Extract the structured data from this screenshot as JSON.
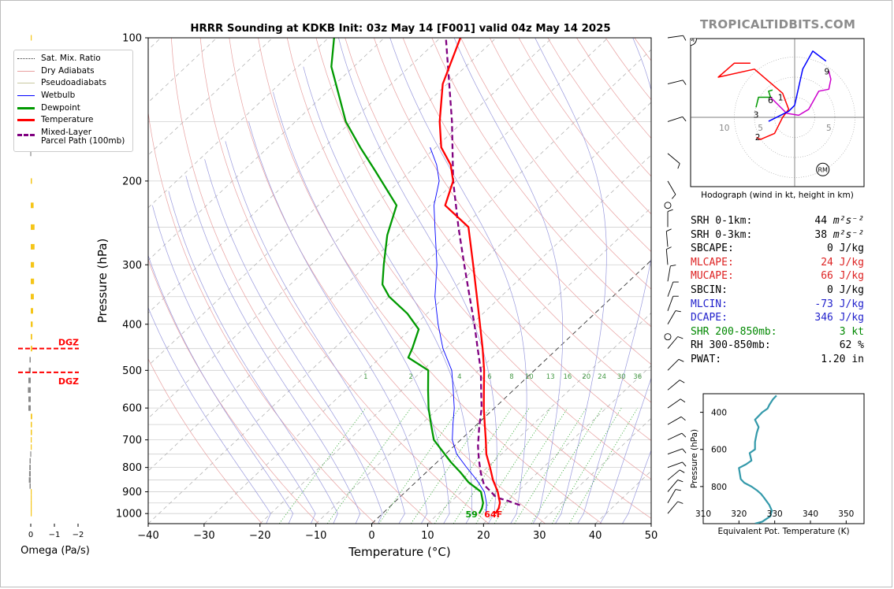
{
  "title": "HRRR Sounding at KDKB Init: 03z May 14 [F001] valid 04z May 14 2025",
  "brand": "TROPICALTIDBITS.COM",
  "colors": {
    "temperature": "#ff0000",
    "dewpoint": "#009900",
    "wetbulb": "#0000ff",
    "parcel": "#800080",
    "dry_adiabat": "#e8a0a0",
    "moist_adiabat": "#9999dd",
    "mixing_ratio": "#33aa33",
    "isotherm": "#555555",
    "theta_e": "#3399aa",
    "omega_up": "#f5c518",
    "omega_down": "#888888"
  },
  "legend": [
    {
      "label": "Sat. Mix. Ratio",
      "style": "mixing"
    },
    {
      "label": "Dry Adiabats",
      "style": "dry"
    },
    {
      "label": "Pseudoadiabats",
      "style": "pseudo"
    },
    {
      "label": "Wetbulb",
      "style": "wetbulb"
    },
    {
      "label": "Dewpoint",
      "style": "dewpoint"
    },
    {
      "label": "Temperature",
      "style": "temperature"
    },
    {
      "label": "Mixed-Layer\nParcel Path (100mb)",
      "style": "parcel"
    }
  ],
  "surface_labels": {
    "dewpoint": "59",
    "temperature": "64F"
  },
  "indices": [
    {
      "label": "SRH 0-1km:",
      "value": "44",
      "unit": "m²s⁻²",
      "color": "#000000"
    },
    {
      "label": "SRH 0-3km:",
      "value": "38",
      "unit": "m²s⁻²",
      "color": "#000000"
    },
    {
      "label": "SBCAPE:",
      "value": "0 J/kg",
      "unit": "",
      "color": "#000000"
    },
    {
      "label": "MLCAPE:",
      "value": "24 J/kg",
      "unit": "",
      "color": "#dd2222"
    },
    {
      "label": "MUCAPE:",
      "value": "66 J/kg",
      "unit": "",
      "color": "#dd2222"
    },
    {
      "label": "SBCIN:",
      "value": "0 J/kg",
      "unit": "",
      "color": "#000000"
    },
    {
      "label": "MLCIN:",
      "value": "-73 J/kg",
      "unit": "",
      "color": "#2222cc"
    },
    {
      "label": "DCAPE:",
      "value": "346 J/kg",
      "unit": "",
      "color": "#2222cc"
    },
    {
      "label": "SHR 200-850mb:",
      "value": "3 kt",
      "unit": "",
      "color": "#008800"
    },
    {
      "label": "RH 300-850mb:",
      "value": "62 %",
      "unit": "",
      "color": "#000000"
    },
    {
      "label": "PWAT:",
      "value": "1.20 in",
      "unit": "",
      "color": "#000000"
    }
  ],
  "chart_data": [
    {
      "type": "line",
      "name": "skew-t",
      "xlabel": "Temperature (°C)",
      "ylabel": "Pressure (hPa)",
      "xlim": [
        -40,
        50
      ],
      "ylim": [
        1050,
        100
      ],
      "y_scale": "log",
      "x_ticks": [
        -40,
        -30,
        -20,
        -10,
        0,
        10,
        20,
        30,
        40,
        50
      ],
      "y_ticks": [
        100,
        200,
        300,
        400,
        500,
        600,
        700,
        800,
        900,
        1000
      ],
      "grid": true,
      "mixing_ratio_labels": [
        "1",
        "2",
        "4",
        "6",
        "8",
        "10",
        "13",
        "16",
        "20",
        "24",
        "30",
        "36"
      ],
      "series": [
        {
          "name": "Temperature",
          "points": [
            [
              20.2,
              1000
            ],
            [
              19.8,
              975
            ],
            [
              19.0,
              950
            ],
            [
              16.5,
              900
            ],
            [
              13.4,
              850
            ],
            [
              10.5,
              800
            ],
            [
              7.3,
              750
            ],
            [
              4.5,
              700
            ],
            [
              1.4,
              650
            ],
            [
              -1.9,
              600
            ],
            [
              -5.3,
              550
            ],
            [
              -9.0,
              500
            ],
            [
              -13.4,
              450
            ],
            [
              -18.5,
              400
            ],
            [
              -24.3,
              350
            ],
            [
              -31.0,
              300
            ],
            [
              -39.0,
              250
            ],
            [
              -47.3,
              225
            ],
            [
              -50.5,
              200
            ],
            [
              -54.0,
              185
            ],
            [
              -59.0,
              170
            ],
            [
              -64.2,
              150
            ],
            [
              -70.8,
              125
            ],
            [
              -76.4,
              100
            ]
          ]
        },
        {
          "name": "Dewpoint",
          "points": [
            [
              17.3,
              1000
            ],
            [
              16.8,
              975
            ],
            [
              16.0,
              950
            ],
            [
              13.5,
              900
            ],
            [
              9.5,
              860
            ],
            [
              6.2,
              820
            ],
            [
              2.5,
              780
            ],
            [
              -1.5,
              735
            ],
            [
              -4.8,
              700
            ],
            [
              -8.2,
              650
            ],
            [
              -11.8,
              600
            ],
            [
              -15.3,
              550
            ],
            [
              -19.0,
              500
            ],
            [
              -25.0,
              470
            ],
            [
              -26.0,
              450
            ],
            [
              -28.5,
              410
            ],
            [
              -33.5,
              380
            ],
            [
              -40.0,
              350
            ],
            [
              -43.5,
              330
            ],
            [
              -47.0,
              300
            ],
            [
              -52.0,
              260
            ],
            [
              -56.0,
              225
            ],
            [
              -66.5,
              190
            ],
            [
              -73.5,
              170
            ],
            [
              -81.0,
              150
            ],
            [
              -88.0,
              130
            ],
            [
              -94.0,
              115
            ],
            [
              -99.0,
              100
            ]
          ]
        },
        {
          "name": "Wetbulb",
          "points": [
            [
              18.5,
              1000
            ],
            [
              17.6,
              975
            ],
            [
              16.6,
              950
            ],
            [
              14.1,
              900
            ],
            [
              10.5,
              850
            ],
            [
              6.3,
              800
            ],
            [
              2.0,
              750
            ],
            [
              -1.5,
              700
            ],
            [
              -4.3,
              650
            ],
            [
              -7.2,
              600
            ],
            [
              -10.8,
              550
            ],
            [
              -14.8,
              500
            ],
            [
              -20.5,
              450
            ],
            [
              -26.0,
              400
            ],
            [
              -31.8,
              350
            ],
            [
              -37.5,
              300
            ],
            [
              -45.0,
              250
            ],
            [
              -49.3,
              225
            ],
            [
              -53.0,
              200
            ],
            [
              -56.5,
              185
            ],
            [
              -61.0,
              170
            ]
          ]
        },
        {
          "name": "Mixed-Layer Parcel Path (100mb)",
          "points": [
            [
              23.0,
              960
            ],
            [
              20.0,
              940
            ],
            [
              17.3,
              925
            ],
            [
              15.3,
              900
            ],
            [
              12.7,
              870
            ],
            [
              9.8,
              820
            ],
            [
              7.0,
              770
            ],
            [
              4.2,
              720
            ],
            [
              1.0,
              660
            ],
            [
              -2.3,
              600
            ],
            [
              -5.8,
              550
            ],
            [
              -9.6,
              500
            ],
            [
              -14.3,
              450
            ],
            [
              -19.5,
              400
            ],
            [
              -25.6,
              350
            ],
            [
              -32.6,
              300
            ],
            [
              -40.8,
              250
            ],
            [
              -50.5,
              200
            ],
            [
              -62.0,
              150
            ],
            [
              -75.0,
              110
            ],
            [
              -79.0,
              100
            ]
          ]
        }
      ]
    },
    {
      "type": "bar",
      "name": "omega",
      "xlabel": "Omega (Pa/s)",
      "x_ticks": [
        0,
        -1,
        -2
      ],
      "xlim": [
        0.3,
        -2.3
      ],
      "dgz_label": "DGZ",
      "dgz_levels": [
        450,
        505
      ],
      "bars": [
        [
          1000,
          -0.03
        ],
        [
          975,
          -0.04
        ],
        [
          950,
          -0.04
        ],
        [
          925,
          -0.03
        ],
        [
          900,
          -0.02
        ],
        [
          875,
          0.05
        ],
        [
          850,
          0.08
        ],
        [
          825,
          0.07
        ],
        [
          800,
          0.06
        ],
        [
          775,
          0.05
        ],
        [
          750,
          0.02
        ],
        [
          725,
          -0.03
        ],
        [
          700,
          -0.04
        ],
        [
          675,
          -0.05
        ],
        [
          650,
          -0.05
        ],
        [
          625,
          -0.06
        ],
        [
          600,
          0.1
        ],
        [
          575,
          0.1
        ],
        [
          550,
          0.12
        ],
        [
          525,
          0.1
        ],
        [
          500,
          0.08
        ],
        [
          475,
          0.05
        ],
        [
          450,
          -0.06
        ],
        [
          425,
          -0.06
        ],
        [
          400,
          -0.08
        ],
        [
          375,
          -0.1
        ],
        [
          350,
          -0.13
        ],
        [
          325,
          -0.14
        ],
        [
          300,
          -0.14
        ],
        [
          275,
          -0.16
        ],
        [
          250,
          -0.16
        ],
        [
          225,
          -0.12
        ],
        [
          200,
          -0.05
        ],
        [
          175,
          0.02
        ],
        [
          150,
          0.02
        ],
        [
          125,
          -0.02
        ],
        [
          100,
          -0.03
        ]
      ]
    },
    {
      "type": "line",
      "name": "hodograph",
      "caption": "Hodograph (wind in kt, height in km)",
      "ring_labels": [
        "10",
        "5",
        "5"
      ],
      "storm_motion_labels": [
        "LM",
        "RM"
      ],
      "height_labels": [
        [
          "1",
          -3.5,
          5.0
        ],
        [
          "2",
          -9.2,
          -4.9
        ],
        [
          "3",
          -9.6,
          0.7
        ],
        [
          "6",
          -6.0,
          4.3
        ],
        [
          "9",
          8.0,
          11.5
        ]
      ],
      "segments": [
        {
          "color": "#ff0000",
          "points": [
            [
              -9.5,
              -5.0
            ],
            [
              -8.5,
              -5.5
            ],
            [
              -5.0,
              -4.0
            ],
            [
              -3.0,
              0.0
            ],
            [
              -1.5,
              2.0
            ],
            [
              -3.0,
              6.0
            ],
            [
              -10.0,
              12.0
            ],
            [
              -19.0,
              10.0
            ],
            [
              -15.0,
              13.5
            ],
            [
              -11.0,
              13.5
            ]
          ]
        },
        {
          "color": "#009900",
          "points": [
            [
              -9.6,
              2.5
            ],
            [
              -9.0,
              5.0
            ],
            [
              -6.0,
              5.0
            ],
            [
              -6.5,
              6.5
            ],
            [
              -5.5,
              6.8
            ]
          ]
        },
        {
          "color": "#cc00cc",
          "points": [
            [
              -6.0,
              5.0
            ],
            [
              -2.0,
              1.0
            ],
            [
              1.0,
              0.5
            ],
            [
              3.5,
              2.0
            ],
            [
              6.0,
              6.5
            ],
            [
              8.5,
              7.0
            ],
            [
              9.0,
              9.5
            ],
            [
              8.5,
              11.5
            ]
          ]
        },
        {
          "color": "#0000ff",
          "points": [
            [
              -6.5,
              -1.0
            ],
            [
              -1.5,
              1.5
            ],
            [
              0.0,
              3.0
            ],
            [
              2.0,
              12.0
            ],
            [
              4.5,
              16.5
            ],
            [
              7.8,
              14.0
            ]
          ]
        }
      ]
    },
    {
      "type": "line",
      "name": "theta-e",
      "xlabel": "Equivalent Pot. Temperature (K)",
      "ylabel": "Pressure (hPa)",
      "xlim": [
        310,
        355
      ],
      "ylim": [
        1000,
        300
      ],
      "x_ticks": [
        310,
        320,
        330,
        340,
        350
      ],
      "y_ticks": [
        400,
        600,
        800
      ],
      "series": [
        {
          "name": "Theta-E",
          "points": [
            [
              324.5,
              1000
            ],
            [
              326.5,
              990
            ],
            [
              328.8,
              960
            ],
            [
              329.2,
              930
            ],
            [
              328.5,
              900
            ],
            [
              327.0,
              860
            ],
            [
              326.2,
              840
            ],
            [
              325.0,
              820
            ],
            [
              323.5,
              800
            ],
            [
              321.5,
              780
            ],
            [
              320.5,
              760
            ],
            [
              320.0,
              700
            ],
            [
              322.0,
              680
            ],
            [
              323.5,
              660
            ],
            [
              323.0,
              620
            ],
            [
              324.5,
              600
            ],
            [
              324.5,
              560
            ],
            [
              325.0,
              510
            ],
            [
              325.5,
              480
            ],
            [
              324.5,
              440
            ],
            [
              325.5,
              420
            ],
            [
              326.5,
              400
            ],
            [
              328.0,
              380
            ],
            [
              328.5,
              360
            ],
            [
              329.5,
              330
            ],
            [
              330.5,
              310
            ]
          ]
        }
      ]
    }
  ]
}
